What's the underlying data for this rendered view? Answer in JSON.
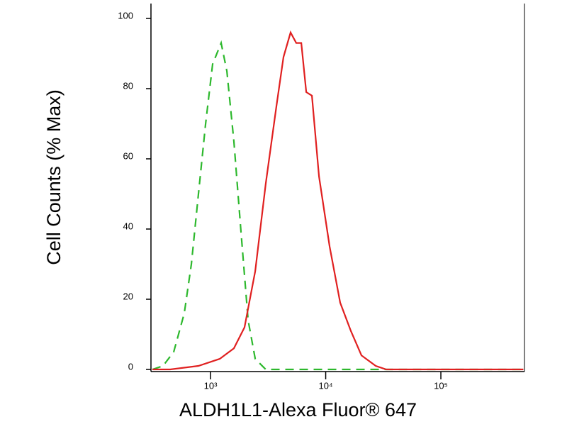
{
  "chart_data": {
    "type": "line",
    "xlabel": "ALDH1L1-Alexa Fluor® 647",
    "ylabel": "Cell Counts (% Max)",
    "xscale": "log",
    "xlim": [
      304,
      532000
    ],
    "ylim": [
      0,
      100
    ],
    "xticks": [
      {
        "value": 1000,
        "label": "10³"
      },
      {
        "value": 10000,
        "label": "10⁴"
      },
      {
        "value": 100000,
        "label": "10⁵"
      }
    ],
    "yticks": [
      0,
      20,
      40,
      60,
      80,
      100
    ],
    "series": [
      {
        "color": "#2db82d",
        "dash": true,
        "x": [
          313,
          387,
          479,
          592,
          682,
          785,
          906,
          1043,
          1237,
          1386,
          1596,
          1840,
          2120,
          2443,
          3020,
          17740,
          520000
        ],
        "values": [
          0,
          1,
          5,
          16,
          30,
          50,
          70,
          87,
          93,
          85,
          65,
          39,
          14,
          3,
          0,
          0,
          0
        ]
      },
      {
        "color": "#e02020",
        "dash": false,
        "x": [
          313,
          446,
          785,
          1202,
          1596,
          1973,
          2443,
          3020,
          3733,
          4303,
          4958,
          5554,
          6138,
          6778,
          7590,
          8745,
          10820,
          13370,
          16530,
          20450,
          27170,
          33580,
          520000
        ],
        "values": [
          0,
          0,
          1,
          3,
          6,
          12,
          28,
          53,
          75,
          89,
          96,
          93,
          93,
          79,
          78,
          55,
          35,
          19,
          11,
          4,
          1,
          0,
          0
        ]
      }
    ]
  }
}
